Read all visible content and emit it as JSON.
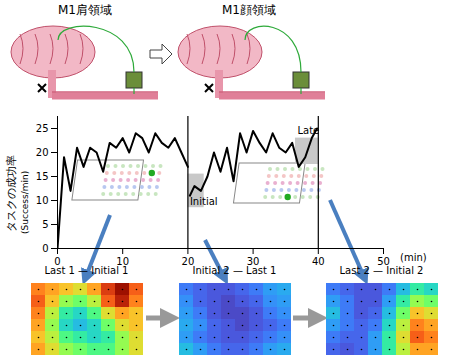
{
  "diagram": {
    "regions": [
      "M1肩領域",
      "M1顔領域"
    ]
  },
  "chart_data": [
    {
      "type": "line",
      "ylabel": "タスクの成功率",
      "ylabel_unit": "(Success/min)",
      "xlabel": "(min)",
      "x": [
        0,
        1,
        2,
        3,
        4,
        5,
        6,
        7,
        8,
        9,
        10,
        11,
        12,
        13,
        14,
        15,
        16,
        17,
        18,
        19,
        20,
        20.1,
        20.3,
        21,
        22,
        23,
        24,
        25,
        26,
        27,
        28,
        29,
        30,
        31,
        32,
        33,
        34,
        35,
        36,
        37,
        38,
        39,
        39.8
      ],
      "values": [
        0,
        19,
        12,
        21,
        17,
        21,
        20,
        16,
        22,
        21,
        23,
        20,
        24,
        23,
        20,
        24,
        22,
        21,
        23,
        20,
        17,
        null,
        11,
        13,
        12,
        15,
        20,
        16,
        21,
        14,
        24,
        20,
        24.5,
        22,
        20,
        24,
        21,
        20,
        22,
        17,
        19,
        23,
        25
      ],
      "color": "#000000",
      "xlim": [
        0,
        50
      ],
      "xticks": [
        0,
        10,
        20,
        30,
        40,
        50
      ],
      "ylim": [
        0,
        27.5
      ],
      "yticks": [
        0,
        5,
        10,
        15,
        20,
        25
      ],
      "vlines": [
        20,
        40
      ],
      "highlights": [
        {
          "label": "Initial",
          "x": [
            20,
            22.5
          ],
          "y": [
            8.5,
            15.5
          ]
        },
        {
          "label": "Late",
          "x": [
            36.5,
            40
          ],
          "y": [
            17.5,
            23
          ]
        }
      ]
    },
    {
      "type": "heatmap",
      "title": "Last 1 — Initial 1",
      "zlim": [
        0,
        1
      ],
      "tick_labels": false,
      "cells": [
        [
          0.75,
          0.7,
          0.65,
          0.6,
          0.7,
          0.85,
          0.95,
          0.8
        ],
        [
          0.8,
          0.65,
          0.5,
          0.45,
          0.55,
          0.8,
          0.9,
          0.75
        ],
        [
          0.75,
          0.55,
          0.35,
          0.3,
          0.4,
          0.6,
          0.7,
          0.65
        ],
        [
          0.7,
          0.5,
          0.3,
          0.25,
          0.3,
          0.45,
          0.6,
          0.65
        ],
        [
          0.65,
          0.55,
          0.4,
          0.35,
          0.3,
          0.35,
          0.5,
          0.6
        ],
        [
          0.7,
          0.6,
          0.5,
          0.45,
          0.4,
          0.4,
          0.5,
          0.6
        ]
      ]
    },
    {
      "type": "heatmap",
      "title": "Initial 2 — Last 1",
      "zlim": [
        0,
        1
      ],
      "tick_labels": false,
      "cells": [
        [
          0.15,
          0.12,
          0.1,
          0.1,
          0.12,
          0.15,
          0.2,
          0.22
        ],
        [
          0.18,
          0.12,
          0.1,
          0.08,
          0.1,
          0.12,
          0.18,
          0.2
        ],
        [
          0.2,
          0.15,
          0.1,
          0.08,
          0.08,
          0.1,
          0.15,
          0.18
        ],
        [
          0.22,
          0.18,
          0.12,
          0.1,
          0.08,
          0.1,
          0.12,
          0.15
        ],
        [
          0.2,
          0.15,
          0.12,
          0.1,
          0.1,
          0.12,
          0.15,
          0.18
        ],
        [
          0.25,
          0.2,
          0.15,
          0.12,
          0.12,
          0.15,
          0.2,
          0.22
        ]
      ]
    },
    {
      "type": "heatmap",
      "title": "Last 2 — Initial 2",
      "zlim": [
        0,
        1
      ],
      "tick_labels": false,
      "cells": [
        [
          0.15,
          0.12,
          0.1,
          0.1,
          0.15,
          0.25,
          0.35,
          0.3
        ],
        [
          0.2,
          0.15,
          0.1,
          0.1,
          0.2,
          0.35,
          0.5,
          0.45
        ],
        [
          0.25,
          0.15,
          0.1,
          0.12,
          0.25,
          0.45,
          0.65,
          0.6
        ],
        [
          0.2,
          0.15,
          0.12,
          0.15,
          0.3,
          0.55,
          0.75,
          0.7
        ],
        [
          0.15,
          0.12,
          0.12,
          0.2,
          0.35,
          0.6,
          0.8,
          0.75
        ],
        [
          0.12,
          0.1,
          0.12,
          0.2,
          0.35,
          0.55,
          0.7,
          0.7
        ]
      ]
    }
  ]
}
